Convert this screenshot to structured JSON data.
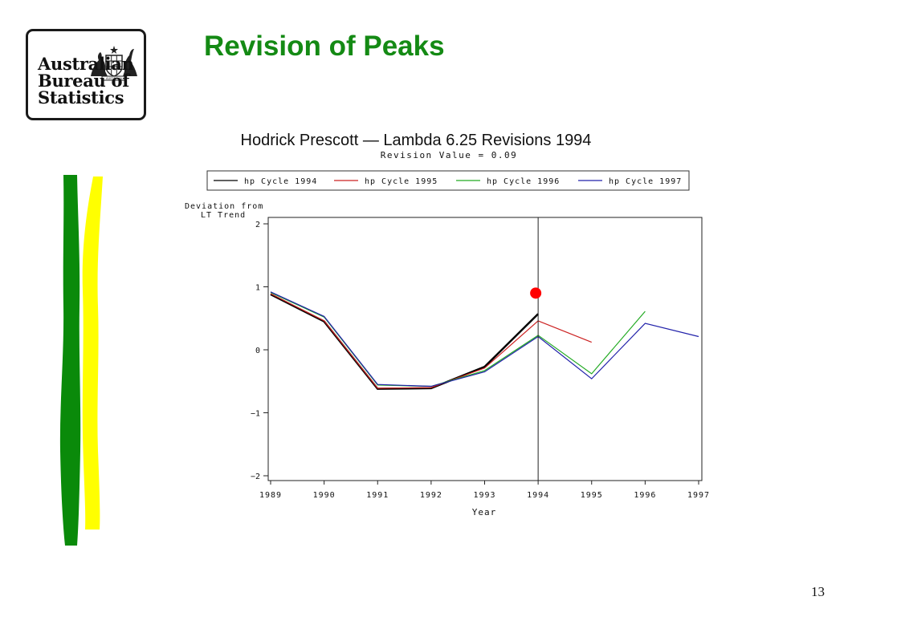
{
  "slide": {
    "title": "Revision of Peaks",
    "page_number": "13",
    "logo": {
      "line1": "Australian",
      "line2": "Bureau of",
      "line3": "Statistics",
      "crest_text": "AUSTRALIA"
    }
  },
  "chart_data": {
    "type": "line",
    "title": "Hodrick Prescott — Lambda 6.25 Revisions 1994",
    "subtitle": "Revision Value = 0.09",
    "ylabel_line1": "Deviation from",
    "ylabel_line2": "LT Trend",
    "xlabel": "Year",
    "xlim": [
      1989,
      1997
    ],
    "ylim": [
      -2,
      2
    ],
    "x_ticks": [
      "1989",
      "1990",
      "1991",
      "1992",
      "1993",
      "1994",
      "1995",
      "1996",
      "1997"
    ],
    "y_ticks": [
      "2",
      "1",
      "0",
      "−1",
      "−2"
    ],
    "y_tick_values": [
      2,
      1,
      0,
      -1,
      -2
    ],
    "legend_position": "top",
    "reference_line_x": 1994,
    "highlight_point": {
      "x": 1994,
      "y": 0.9,
      "color": "#ff0000"
    },
    "series": [
      {
        "name": "hp Cycle 1994",
        "color": "#000000",
        "x": [
          1989,
          1990,
          1991,
          1992,
          1993,
          1994
        ],
        "values": [
          0.88,
          0.45,
          -0.62,
          -0.61,
          -0.27,
          0.57
        ]
      },
      {
        "name": "hp Cycle 1995",
        "color": "#cc2222",
        "x": [
          1989,
          1990,
          1991,
          1992,
          1993,
          1994,
          1995
        ],
        "values": [
          0.89,
          0.46,
          -0.61,
          -0.6,
          -0.29,
          0.46,
          0.12
        ]
      },
      {
        "name": "hp Cycle 1996",
        "color": "#22aa22",
        "x": [
          1989,
          1990,
          1991,
          1992,
          1993,
          1994,
          1995,
          1996
        ],
        "values": [
          0.91,
          0.52,
          -0.56,
          -0.58,
          -0.33,
          0.23,
          -0.38,
          0.61
        ]
      },
      {
        "name": "hp Cycle 1997",
        "color": "#2222aa",
        "x": [
          1989,
          1990,
          1991,
          1992,
          1993,
          1994,
          1995,
          1996,
          1997
        ],
        "values": [
          0.92,
          0.53,
          -0.55,
          -0.58,
          -0.35,
          0.21,
          -0.46,
          0.42,
          0.21
        ]
      }
    ]
  }
}
